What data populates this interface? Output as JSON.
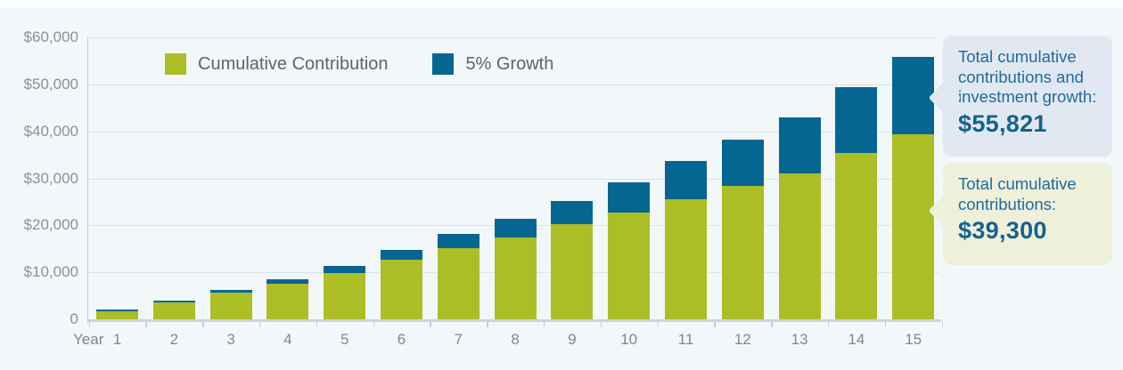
{
  "chart_data": {
    "type": "bar",
    "stacked": true,
    "xlabel": "Year",
    "categories": [
      "1",
      "2",
      "3",
      "4",
      "5",
      "6",
      "7",
      "8",
      "9",
      "10",
      "11",
      "12",
      "13",
      "14",
      "15"
    ],
    "series": [
      {
        "name": "Cumulative Contribution",
        "color": "#abbe26",
        "values": [
          1700,
          3550,
          5700,
          7600,
          9900,
          12600,
          15100,
          17400,
          20200,
          22700,
          25600,
          28400,
          31000,
          35300,
          39300
        ]
      },
      {
        "name": "5% Growth",
        "color": "#046691",
        "values": [
          400,
          350,
          500,
          1000,
          1500,
          2100,
          3000,
          4000,
          4900,
          6400,
          8100,
          9800,
          11900,
          14100,
          16521
        ]
      }
    ],
    "stack_totals": [
      2100,
      3900,
      6200,
      8600,
      11400,
      14700,
      18100,
      21400,
      25100,
      29100,
      33700,
      38200,
      42900,
      49400,
      55821
    ],
    "ylim": [
      0,
      60000
    ],
    "ytick_step": 10000,
    "ytick_labels": [
      "0",
      "$10,000",
      "$20,000",
      "$30,000",
      "$40,000",
      "$50,000",
      "$60,000"
    ],
    "grid": true,
    "legend_position": "top-center"
  },
  "callouts": [
    {
      "text": "Total cumulative contributions and investment growth:",
      "amount": "$55,821",
      "bg": "#e2e8f1"
    },
    {
      "text": "Total cumulative contributions:",
      "amount": "$39,300",
      "bg": "#eef0d9"
    }
  ],
  "colors": {
    "background": "#f2f7fa",
    "contribution_green": "#abbe26",
    "growth_blue": "#046691",
    "callout_text_blue": "#1d6b9f",
    "callout_amount_blue": "#15628e"
  }
}
